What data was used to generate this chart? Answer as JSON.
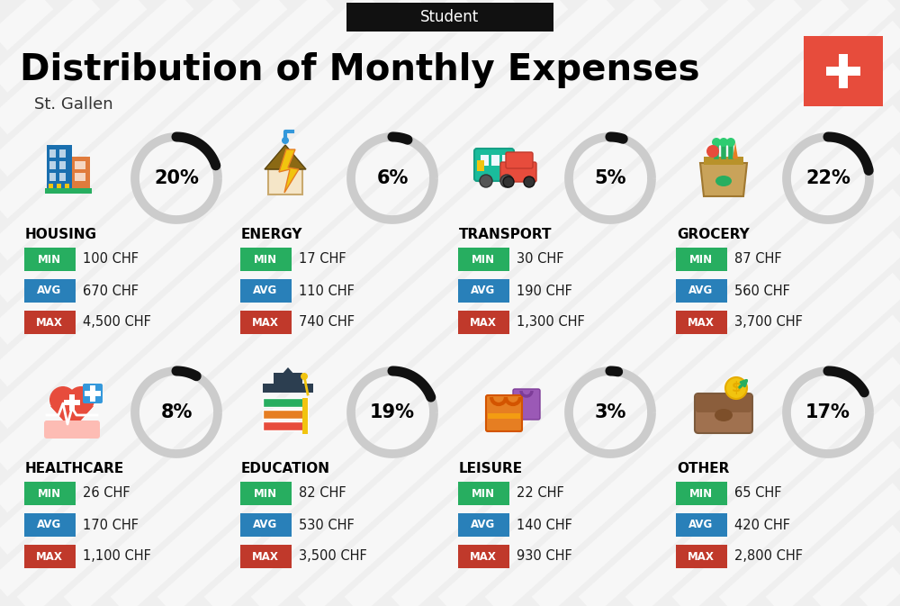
{
  "title": "Distribution of Monthly Expenses",
  "subtitle": "St. Gallen",
  "header_label": "Student",
  "background_color": "#efefef",
  "categories": [
    {
      "name": "HOUSING",
      "pct": 20,
      "min": "100 CHF",
      "avg": "670 CHF",
      "max": "4,500 CHF",
      "col": 0,
      "row": 0
    },
    {
      "name": "ENERGY",
      "pct": 6,
      "min": "17 CHF",
      "avg": "110 CHF",
      "max": "740 CHF",
      "col": 1,
      "row": 0
    },
    {
      "name": "TRANSPORT",
      "pct": 5,
      "min": "30 CHF",
      "avg": "190 CHF",
      "max": "1,300 CHF",
      "col": 2,
      "row": 0
    },
    {
      "name": "GROCERY",
      "pct": 22,
      "min": "87 CHF",
      "avg": "560 CHF",
      "max": "3,700 CHF",
      "col": 3,
      "row": 0
    },
    {
      "name": "HEALTHCARE",
      "pct": 8,
      "min": "26 CHF",
      "avg": "170 CHF",
      "max": "1,100 CHF",
      "col": 0,
      "row": 1
    },
    {
      "name": "EDUCATION",
      "pct": 19,
      "min": "82 CHF",
      "avg": "530 CHF",
      "max": "3,500 CHF",
      "col": 1,
      "row": 1
    },
    {
      "name": "LEISURE",
      "pct": 3,
      "min": "22 CHF",
      "avg": "140 CHF",
      "max": "930 CHF",
      "col": 2,
      "row": 1
    },
    {
      "name": "OTHER",
      "pct": 17,
      "min": "65 CHF",
      "avg": "420 CHF",
      "max": "2,800 CHF",
      "col": 3,
      "row": 1
    }
  ],
  "color_min": "#27ae60",
  "color_avg": "#2980b9",
  "color_max": "#c0392b",
  "color_arc_filled": "#111111",
  "color_arc_empty": "#cccccc",
  "flag_color": "#e74c3c",
  "stripe_color": "#ffffff"
}
